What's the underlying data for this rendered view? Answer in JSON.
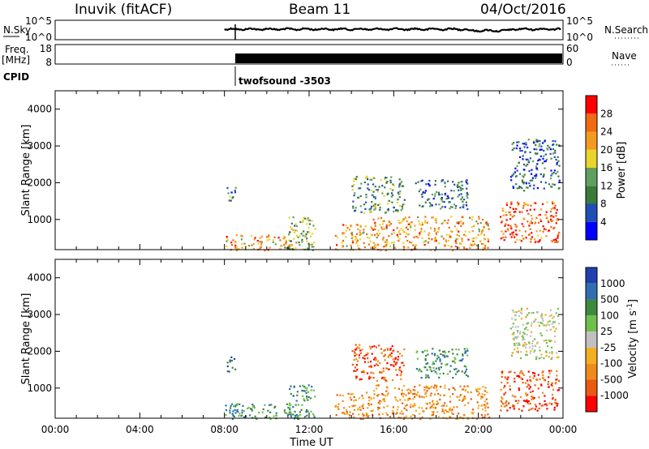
{
  "header": {
    "station": "Inuvik (fitACF)",
    "beam": "Beam 11",
    "date": "04/Oct/2016"
  },
  "panels": {
    "nsky": {
      "label": "N.Sky",
      "right_label": "N.Search",
      "left_ticks": [
        "10^5",
        "10^0"
      ],
      "right_ticks": [
        "10^5",
        "10^0"
      ]
    },
    "freq": {
      "label_line1": "Freq.",
      "label_line2": "[MHz]",
      "right_label": "Nave",
      "left_ticks": [
        "18",
        "8"
      ],
      "right_ticks": [
        "60",
        "0"
      ]
    },
    "cpid": {
      "label": "CPID",
      "program": "twofsound -3503"
    }
  },
  "colors": {
    "power": [
      "#0000ff",
      "#1f4fb4",
      "#3a7a3a",
      "#5fa05f",
      "#e8d42a",
      "#f59a20",
      "#ef6a10",
      "#ff0000"
    ],
    "velocity": [
      "#2040b0",
      "#2f6fb0",
      "#3d8a3d",
      "#6fc04a",
      "#c0c0c0",
      "#f0b020",
      "#f08a18",
      "#e85a10",
      "#ff0000"
    ],
    "scatter_density": "#808080"
  },
  "chart_data": [
    {
      "type": "heatmap",
      "name": "power",
      "title": "",
      "xlabel": "Time UT",
      "ylabel": "Slant Range [km]",
      "xlim": [
        "00:00",
        "24:00"
      ],
      "ylim": [
        180,
        4500
      ],
      "x_ticks": [
        "00:00",
        "04:00",
        "08:00",
        "12:00",
        "16:00",
        "20:00",
        "00:00"
      ],
      "y_ticks": [
        "1000",
        "2000",
        "3000",
        "4000"
      ],
      "colorbar_label": "Power [dB]",
      "colorbar_ticks": [
        "4",
        "8",
        "12",
        "16",
        "20",
        "24",
        "28"
      ],
      "colorbar_range": [
        0,
        32
      ],
      "data_start": "08:00",
      "scatter_regions": [
        {
          "t": [
            8.0,
            11.5
          ],
          "r": [
            180,
            600
          ],
          "value": 22
        },
        {
          "t": [
            8.1,
            8.5
          ],
          "r": [
            1400,
            1900
          ],
          "value": 10
        },
        {
          "t": [
            11.0,
            12.3
          ],
          "r": [
            180,
            1100
          ],
          "value": 14
        },
        {
          "t": [
            13.2,
            15.0
          ],
          "r": [
            180,
            900
          ],
          "value": 22
        },
        {
          "t": [
            14.0,
            16.5
          ],
          "r": [
            1200,
            2200
          ],
          "value": 12
        },
        {
          "t": [
            15.0,
            20.5
          ],
          "r": [
            180,
            1100
          ],
          "value": 22
        },
        {
          "t": [
            17.0,
            19.5
          ],
          "r": [
            1300,
            2100
          ],
          "value": 8
        },
        {
          "t": [
            21.0,
            23.8
          ],
          "r": [
            400,
            1500
          ],
          "value": 26
        },
        {
          "t": [
            21.5,
            23.8
          ],
          "r": [
            1800,
            3200
          ],
          "value": 8
        }
      ]
    },
    {
      "type": "heatmap",
      "name": "velocity",
      "title": "",
      "xlabel": "Time UT",
      "ylabel": "Slant Range [km]",
      "xlim": [
        "00:00",
        "24:00"
      ],
      "ylim": [
        180,
        4500
      ],
      "x_ticks": [
        "00:00",
        "04:00",
        "08:00",
        "12:00",
        "16:00",
        "20:00",
        "00:00"
      ],
      "y_ticks": [
        "1000",
        "2000",
        "3000",
        "4000"
      ],
      "colorbar_label": "Velocity [m s^-1]",
      "colorbar_ticks": [
        "1000",
        "500",
        "100",
        "25",
        "-25",
        "-100",
        "-500",
        "-1000"
      ],
      "data_start": "08:00",
      "scatter_regions": [
        {
          "t": [
            8.0,
            11.5
          ],
          "r": [
            180,
            600
          ],
          "value": 100
        },
        {
          "t": [
            8.1,
            8.5
          ],
          "r": [
            1400,
            1900
          ],
          "value": 500
        },
        {
          "t": [
            11.0,
            12.3
          ],
          "r": [
            180,
            1100
          ],
          "value": 100
        },
        {
          "t": [
            13.2,
            15.0
          ],
          "r": [
            180,
            900
          ],
          "value": -100
        },
        {
          "t": [
            14.0,
            16.5
          ],
          "r": [
            1200,
            2200
          ],
          "value": -500
        },
        {
          "t": [
            15.0,
            20.5
          ],
          "r": [
            180,
            1100
          ],
          "value": -100
        },
        {
          "t": [
            17.0,
            19.5
          ],
          "r": [
            1300,
            2100
          ],
          "value": 100
        },
        {
          "t": [
            21.0,
            23.8
          ],
          "r": [
            400,
            1500
          ],
          "value": -500
        },
        {
          "t": [
            21.5,
            23.8
          ],
          "r": [
            1800,
            3200
          ],
          "value": 0
        }
      ]
    }
  ]
}
